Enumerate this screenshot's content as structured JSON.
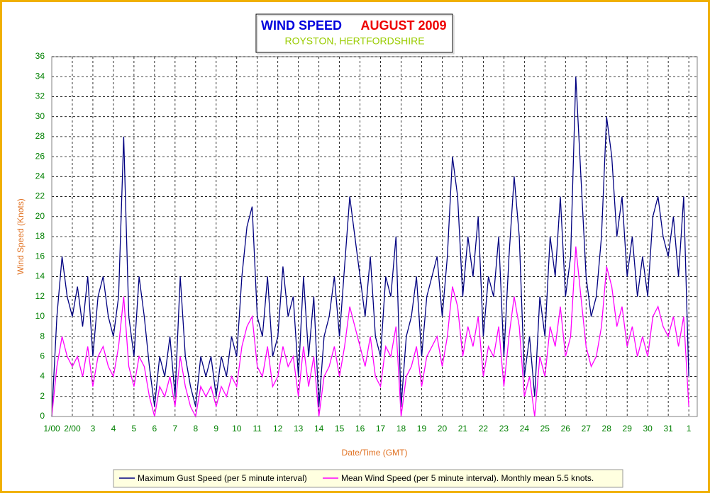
{
  "chart_data": {
    "type": "line",
    "title": "WIND SPEED",
    "period": "AUGUST 2009",
    "subtitle": "ROYSTON, HERTFORDSHIRE",
    "xlabel": "Date/Time (GMT)",
    "ylabel": "Wind Speed (Knots)",
    "xlim": [
      1,
      32.41
    ],
    "ylim": [
      0,
      36
    ],
    "xticks": [
      {
        "value": 1,
        "label": "1/00"
      },
      {
        "value": 2,
        "label": "2/00"
      },
      3,
      4,
      5,
      6,
      7,
      8,
      9,
      10,
      11,
      12,
      13,
      14,
      15,
      16,
      17,
      18,
      19,
      20,
      21,
      22,
      23,
      24,
      25,
      26,
      27,
      28,
      29,
      30,
      31,
      {
        "value": 32,
        "label": "1"
      }
    ],
    "yticks": [
      0,
      2,
      4,
      6,
      8,
      10,
      12,
      14,
      16,
      18,
      20,
      22,
      24,
      26,
      28,
      30,
      32,
      34,
      36
    ],
    "grid": true,
    "x": [
      1,
      1.25,
      1.5,
      1.75,
      2,
      2.25,
      2.5,
      2.75,
      3,
      3.25,
      3.5,
      3.75,
      4,
      4.25,
      4.5,
      4.75,
      5,
      5.25,
      5.5,
      5.75,
      6,
      6.25,
      6.5,
      6.75,
      7,
      7.25,
      7.5,
      7.75,
      8,
      8.25,
      8.5,
      8.75,
      9,
      9.25,
      9.5,
      9.75,
      10,
      10.25,
      10.5,
      10.75,
      11,
      11.25,
      11.5,
      11.75,
      12,
      12.25,
      12.5,
      12.75,
      13,
      13.25,
      13.5,
      13.75,
      14,
      14.25,
      14.5,
      14.75,
      15,
      15.25,
      15.5,
      15.75,
      16,
      16.25,
      16.5,
      16.75,
      17,
      17.25,
      17.5,
      17.75,
      18,
      18.25,
      18.5,
      18.75,
      19,
      19.25,
      19.5,
      19.75,
      20,
      20.25,
      20.5,
      20.75,
      21,
      21.25,
      21.5,
      21.75,
      22,
      22.25,
      22.5,
      22.75,
      23,
      23.25,
      23.5,
      23.75,
      24,
      24.25,
      24.5,
      24.75,
      25,
      25.25,
      25.5,
      25.75,
      26,
      26.25,
      26.5,
      26.75,
      27,
      27.25,
      27.5,
      27.75,
      28,
      28.25,
      28.5,
      28.75,
      29,
      29.25,
      29.5,
      29.75,
      30,
      30.25,
      30.5,
      30.75,
      31,
      31.25,
      31.5,
      31.75,
      32
    ],
    "series": [
      {
        "name": "Maximum Gust Speed (per 5 minute interval)",
        "color": "#000080",
        "values": [
          0,
          10,
          16,
          12,
          10,
          13,
          9,
          14,
          6,
          12,
          14,
          10,
          8,
          12,
          28,
          10,
          6,
          14,
          10,
          5,
          1,
          6,
          4,
          8,
          2,
          14,
          6,
          3,
          1,
          6,
          4,
          6,
          2,
          6,
          4,
          8,
          6,
          14,
          19,
          21,
          10,
          8,
          14,
          6,
          8,
          15,
          10,
          12,
          4,
          14,
          6,
          12,
          1,
          8,
          10,
          14,
          8,
          15,
          22,
          18,
          14,
          10,
          16,
          8,
          6,
          14,
          12,
          18,
          1,
          8,
          10,
          14,
          6,
          12,
          14,
          16,
          10,
          16,
          26,
          22,
          12,
          18,
          14,
          20,
          8,
          14,
          12,
          18,
          6,
          16,
          24,
          18,
          4,
          8,
          2,
          12,
          8,
          18,
          14,
          22,
          12,
          16,
          34,
          24,
          14,
          10,
          12,
          18,
          30,
          26,
          18,
          22,
          14,
          18,
          12,
          16,
          12,
          20,
          22,
          18,
          16,
          20,
          14,
          22,
          4
        ]
      },
      {
        "name": "Mean Wind Speed (per 5 minute interval). Monthly mean 5.5 knots.",
        "color": "#ff00ff",
        "values": [
          0,
          5,
          8,
          6,
          5,
          6,
          4,
          7,
          3,
          6,
          7,
          5,
          4,
          7,
          12,
          5,
          3,
          6,
          5,
          2,
          0,
          3,
          2,
          4,
          1,
          6,
          3,
          1,
          0,
          3,
          2,
          3,
          1,
          3,
          2,
          4,
          3,
          7,
          9,
          10,
          5,
          4,
          7,
          3,
          4,
          7,
          5,
          6,
          2,
          7,
          3,
          6,
          0,
          4,
          5,
          7,
          4,
          7,
          11,
          9,
          7,
          5,
          8,
          4,
          3,
          7,
          6,
          9,
          0,
          4,
          5,
          7,
          3,
          6,
          7,
          8,
          5,
          8,
          13,
          11,
          6,
          9,
          7,
          10,
          4,
          7,
          6,
          9,
          3,
          8,
          12,
          9,
          2,
          4,
          0,
          6,
          4,
          9,
          7,
          11,
          6,
          8,
          17,
          12,
          7,
          5,
          6,
          9,
          15,
          13,
          9,
          11,
          7,
          9,
          6,
          8,
          6,
          10,
          11,
          9,
          8,
          10,
          7,
          10,
          1
        ]
      }
    ]
  }
}
